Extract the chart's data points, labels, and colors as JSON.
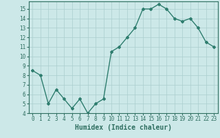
{
  "x": [
    0,
    1,
    2,
    3,
    4,
    5,
    6,
    7,
    8,
    9,
    10,
    11,
    12,
    13,
    14,
    15,
    16,
    17,
    18,
    19,
    20,
    21,
    22,
    23
  ],
  "y": [
    8.5,
    8.0,
    5.0,
    6.5,
    5.5,
    4.5,
    5.5,
    4.0,
    5.0,
    5.5,
    10.5,
    11.0,
    12.0,
    13.0,
    15.0,
    15.0,
    15.5,
    15.0,
    14.0,
    13.7,
    14.0,
    13.0,
    11.5,
    11.0
  ],
  "line_color": "#2e7d6e",
  "marker": "D",
  "marker_size": 2.0,
  "line_width": 1.0,
  "bg_color": "#cce8e8",
  "grid_color": "#aacece",
  "xlabel": "Humidex (Indice chaleur)",
  "xlabel_fontsize": 7,
  "xlim": [
    -0.5,
    23.5
  ],
  "ylim": [
    4,
    15.8
  ],
  "yticks": [
    4,
    5,
    6,
    7,
    8,
    9,
    10,
    11,
    12,
    13,
    14,
    15
  ],
  "xticks": [
    0,
    1,
    2,
    3,
    4,
    5,
    6,
    7,
    8,
    9,
    10,
    11,
    12,
    13,
    14,
    15,
    16,
    17,
    18,
    19,
    20,
    21,
    22,
    23
  ],
  "tick_fontsize": 5.5,
  "axis_color": "#2e6e60"
}
